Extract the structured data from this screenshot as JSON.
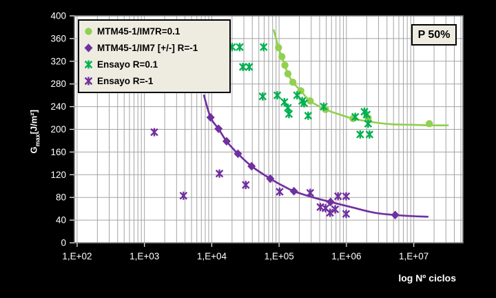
{
  "figure": {
    "background": "#000000",
    "plot_background": "#FFFFFF",
    "grid_color": "#A3A3A3",
    "border_color": "#7F7F7F",
    "tick_color": "#D9D9D9",
    "text_color": "#FFFFFF"
  },
  "chart_data": {
    "type": "scatter",
    "x_scale": "log",
    "grid": true,
    "legend_position": "top-left",
    "annotation": "P 50%",
    "xlabel": "log Nº ciclos",
    "ylabel": "Gmax [J/m²]",
    "ylabel_parts": {
      "main": "G",
      "sub": "max",
      "units": "[J/m²]"
    },
    "axes": {
      "x_log_min": 1.96,
      "x_log_max": 7.73,
      "y_min": 0,
      "y_max": 400,
      "y_step": 40
    },
    "x_tick_labels": [
      "1,E+02",
      "1,E+03",
      "1,E+04",
      "1,E+05",
      "1,E+06",
      "1,E+07"
    ],
    "x_tick_logs": [
      2,
      3,
      4,
      5,
      6,
      7
    ],
    "y_tick_labels": [
      "0",
      "40",
      "80",
      "120",
      "160",
      "200",
      "240",
      "280",
      "320",
      "360",
      "400"
    ],
    "series": [
      {
        "label": "MTM45-1/IM7R=0.1",
        "marker": "circle",
        "color": "#92D050",
        "points": [
          [
            98000,
            344
          ],
          [
            110000,
            328
          ],
          [
            122000,
            313
          ],
          [
            135000,
            298
          ],
          [
            160000,
            283
          ],
          [
            210000,
            268
          ],
          [
            290000,
            250
          ],
          [
            490000,
            235
          ],
          [
            1250000,
            219
          ],
          [
            2100000,
            220
          ],
          [
            17000000,
            210
          ]
        ],
        "curve": [
          [
            83000,
            376
          ],
          [
            98000,
            344
          ],
          [
            110000,
            328
          ],
          [
            122000,
            313
          ],
          [
            135000,
            298
          ],
          [
            160000,
            283
          ],
          [
            210000,
            268
          ],
          [
            290000,
            250
          ],
          [
            490000,
            235
          ],
          [
            800000,
            226
          ],
          [
            1250000,
            219
          ],
          [
            2350000,
            213
          ],
          [
            4700000,
            209
          ],
          [
            9500000,
            208
          ],
          [
            17000000,
            207
          ],
          [
            33000000,
            207
          ]
        ]
      },
      {
        "label": "MTM45-1/IM7 [+/-] R=-1",
        "marker": "diamond",
        "color": "#7030A0",
        "points": [
          [
            9600,
            221
          ],
          [
            12600,
            201
          ],
          [
            16600,
            179
          ],
          [
            24500,
            157
          ],
          [
            39000,
            135
          ],
          [
            74000,
            113
          ],
          [
            166000,
            91
          ],
          [
            580000,
            72
          ],
          [
            5300000,
            49
          ]
        ],
        "curve": [
          [
            7600,
            261
          ],
          [
            9600,
            221
          ],
          [
            12600,
            201
          ],
          [
            16600,
            179
          ],
          [
            24500,
            157
          ],
          [
            39000,
            135
          ],
          [
            74000,
            113
          ],
          [
            120000,
            99
          ],
          [
            166000,
            91
          ],
          [
            320000,
            80
          ],
          [
            580000,
            72
          ],
          [
            1170000,
            63
          ],
          [
            2630000,
            53
          ],
          [
            5300000,
            49
          ],
          [
            9500000,
            47
          ],
          [
            16500000,
            46
          ]
        ]
      },
      {
        "label": "Ensayo R=0.1",
        "marker": "asterisk",
        "color": "#00B050",
        "points": [
          [
            20000,
            345
          ],
          [
            26000,
            345
          ],
          [
            59000,
            345
          ],
          [
            29000,
            310
          ],
          [
            36000,
            310
          ],
          [
            57000,
            258
          ],
          [
            94000,
            260
          ],
          [
            120000,
            248
          ],
          [
            135000,
            238
          ],
          [
            140000,
            227
          ],
          [
            185000,
            260
          ],
          [
            220000,
            250
          ],
          [
            235000,
            246
          ],
          [
            270000,
            224
          ],
          [
            460000,
            240
          ],
          [
            1350000,
            222
          ],
          [
            1850000,
            231
          ],
          [
            2000000,
            226
          ],
          [
            2100000,
            210
          ],
          [
            1600000,
            191
          ],
          [
            2200000,
            191
          ]
        ],
        "curve": []
      },
      {
        "label": "Ensayo R=-1",
        "marker": "asterisk",
        "color": "#7030A0",
        "points": [
          [
            1400,
            195
          ],
          [
            3800,
            83
          ],
          [
            13000,
            122
          ],
          [
            32000,
            102
          ],
          [
            102000,
            90
          ],
          [
            290000,
            88
          ],
          [
            410000,
            63
          ],
          [
            490000,
            61
          ],
          [
            570000,
            53
          ],
          [
            680000,
            59
          ],
          [
            750000,
            82
          ],
          [
            990000,
            82
          ],
          [
            990000,
            51
          ]
        ],
        "curve": []
      }
    ]
  }
}
